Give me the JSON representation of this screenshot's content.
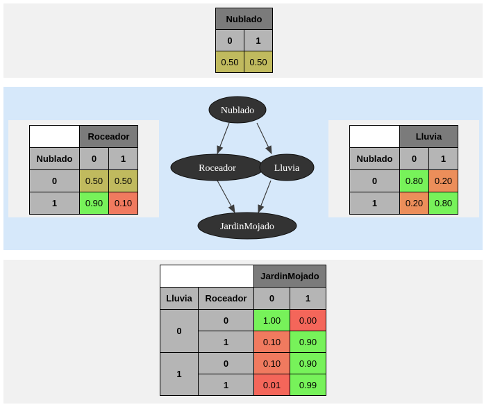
{
  "nodes": {
    "nublado": "Nublado",
    "roceador": "Roceador",
    "lluvia": "Lluvia",
    "jardin": "JardinMojado"
  },
  "tables": {
    "nublado": {
      "title": "Nublado",
      "states": [
        "0",
        "1"
      ],
      "probs": [
        "0.50",
        "0.50"
      ]
    },
    "roceador": {
      "title": "Roceador",
      "parent": "Nublado",
      "states": [
        "0",
        "1"
      ],
      "rows": [
        {
          "parent_value": "0",
          "probs": [
            "0.50",
            "0.50"
          ]
        },
        {
          "parent_value": "1",
          "probs": [
            "0.90",
            "0.10"
          ]
        }
      ]
    },
    "lluvia": {
      "title": "Lluvia",
      "parent": "Nublado",
      "states": [
        "0",
        "1"
      ],
      "rows": [
        {
          "parent_value": "0",
          "probs": [
            "0.80",
            "0.20"
          ]
        },
        {
          "parent_value": "1",
          "probs": [
            "0.20",
            "0.80"
          ]
        }
      ]
    },
    "jardin": {
      "title": "JardinMojado",
      "parent1": "Lluvia",
      "parent2": "Roceador",
      "states": [
        "0",
        "1"
      ],
      "lluvia_values": [
        "0",
        "1"
      ],
      "rows": [
        {
          "roceador": "0",
          "probs": [
            "1.00",
            "0.00"
          ]
        },
        {
          "roceador": "1",
          "probs": [
            "0.10",
            "0.90"
          ]
        },
        {
          "roceador": "0",
          "probs": [
            "0.10",
            "0.90"
          ]
        },
        {
          "roceador": "1",
          "probs": [
            "0.01",
            "0.99"
          ]
        }
      ]
    }
  },
  "colors": {
    "node_fill": "#333333",
    "edge": "#3c3c3c",
    "neutral": "#c0ba5e",
    "high": "#77f25a",
    "mid_low": "#ec8e5a",
    "low": "#f07a5f",
    "lowest": "#f4665a"
  }
}
